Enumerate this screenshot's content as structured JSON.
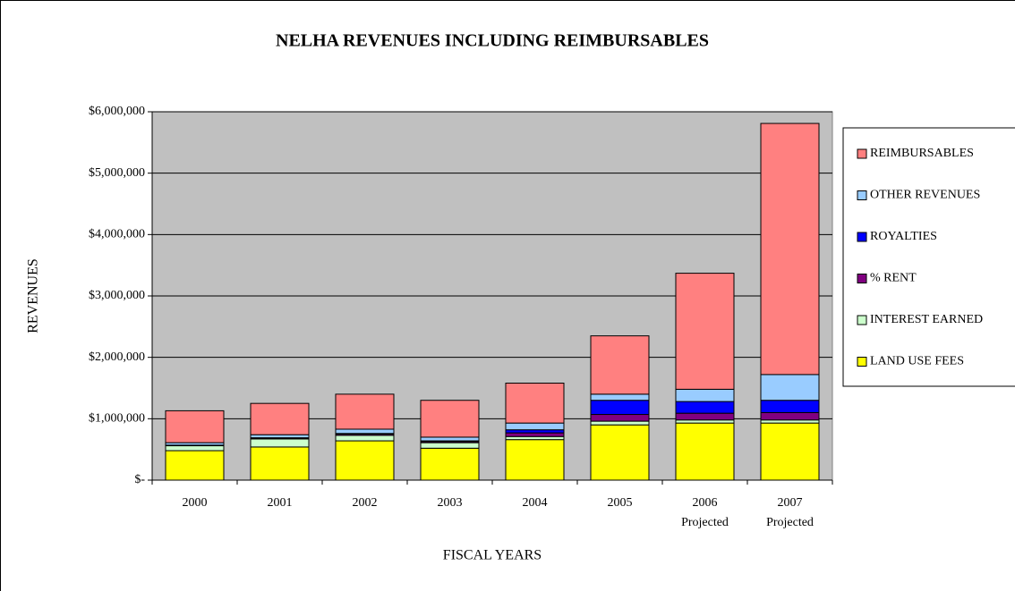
{
  "chart_data": {
    "type": "stacked_bar",
    "title": "NELHA REVENUES INCLUDING REIMBURSABLES",
    "x_label": "FISCAL YEARS",
    "y_label": "REVENUES",
    "categories": [
      "2000",
      "2001",
      "2002",
      "2003",
      "2004",
      "2005",
      "2006 Projected",
      "2007 Projected"
    ],
    "series": [
      {
        "name": "LAND USE FEES",
        "color": "#ffff00",
        "values": [
          480000,
          540000,
          640000,
          520000,
          660000,
          900000,
          930000,
          930000
        ]
      },
      {
        "name": "INTEREST EARNED",
        "color": "#ccffcc",
        "values": [
          80000,
          130000,
          90000,
          90000,
          50000,
          60000,
          50000,
          50000
        ]
      },
      {
        "name": "% RENT",
        "color": "#800080",
        "values": [
          10000,
          10000,
          20000,
          20000,
          60000,
          110000,
          110000,
          120000
        ]
      },
      {
        "name": "ROYALTIES",
        "color": "#0000ff",
        "values": [
          0,
          10000,
          10000,
          10000,
          50000,
          230000,
          190000,
          200000
        ]
      },
      {
        "name": "OTHER REVENUES",
        "color": "#99ccff",
        "values": [
          40000,
          50000,
          70000,
          60000,
          110000,
          100000,
          200000,
          420000
        ]
      },
      {
        "name": "REIMBURSABLES",
        "color": "#ff8080",
        "values": [
          520000,
          510000,
          570000,
          600000,
          650000,
          950000,
          1890000,
          4090000
        ]
      }
    ],
    "ylim": [
      0,
      6000000
    ],
    "yticks": [
      {
        "value": 0,
        "label": "$-"
      },
      {
        "value": 1000000,
        "label": "$1,000,000"
      },
      {
        "value": 2000000,
        "label": "$2,000,000"
      },
      {
        "value": 3000000,
        "label": "$3,000,000"
      },
      {
        "value": 4000000,
        "label": "$4,000,000"
      },
      {
        "value": 5000000,
        "label": "$5,000,000"
      },
      {
        "value": 6000000,
        "label": "$6,000,000"
      }
    ],
    "grid": true,
    "plot_background": "#c0c0c0",
    "legend": "right"
  }
}
